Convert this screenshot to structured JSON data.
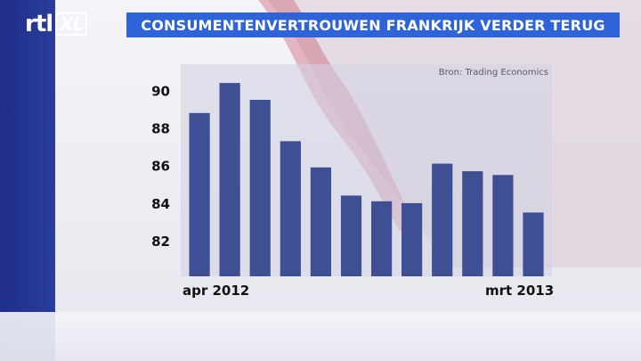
{
  "header": {
    "logo_text": "rtl",
    "logo_badge": "XL",
    "title": "CONSUMENTENVERTROUWEN FRANKRIJK VERDER TERUG"
  },
  "colors": {
    "bar": "#3e4f93",
    "title_bar": "#2f63d8",
    "flag_blue": "#1f2f8a",
    "flag_red": "#c6455a"
  },
  "chart_data": {
    "type": "bar",
    "title": "CONSUMENTENVERTROUWEN FRANKRIJK VERDER TERUG",
    "source": "Bron: Trading Economics",
    "categories": [
      "apr 2012",
      "",
      "",
      "",
      "",
      "",
      "",
      "",
      "",
      "",
      "",
      "mrt 2013"
    ],
    "values": [
      88.8,
      90.4,
      89.5,
      87.3,
      85.9,
      84.4,
      84.1,
      84.0,
      86.1,
      85.7,
      85.5,
      83.5
    ],
    "y_ticks": [
      82,
      84,
      86,
      88,
      90
    ],
    "ylim": [
      80.1,
      91.4
    ],
    "x_tick_labels": [
      "apr 2012",
      "mrt 2013"
    ],
    "grid": false,
    "xlabel": "",
    "ylabel": ""
  }
}
